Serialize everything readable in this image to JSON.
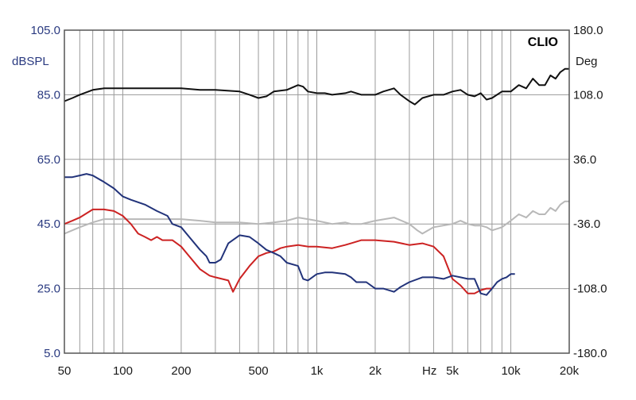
{
  "chart_data": {
    "type": "line",
    "brand": "CLIO",
    "ylabel_left": "dBSPL",
    "ylabel_right": "Deg",
    "x_unit_label": "Hz",
    "x_scale": "log",
    "xlim": [
      50,
      20000
    ],
    "ylim_left": [
      5,
      105
    ],
    "ylim_right": [
      -180,
      180
    ],
    "x_ticks": [
      {
        "value": 50,
        "label": "50"
      },
      {
        "value": 100,
        "label": "100"
      },
      {
        "value": 200,
        "label": "200"
      },
      {
        "value": 500,
        "label": "500"
      },
      {
        "value": 1000,
        "label": "1k"
      },
      {
        "value": 2000,
        "label": "2k"
      },
      {
        "value": 5000,
        "label": "5k"
      },
      {
        "value": 10000,
        "label": "10k"
      },
      {
        "value": 20000,
        "label": "20k"
      }
    ],
    "y_ticks_left": [
      "105.0",
      "85.0",
      "65.0",
      "45.0",
      "25.0",
      "5.0"
    ],
    "y_ticks_right": [
      "180.0",
      "108.0",
      "36.0",
      "-36.0",
      "-108.0",
      "-180.0"
    ],
    "grid": true,
    "colors": {
      "frame": "#555555",
      "grid": "#9a9a9a",
      "left_axis": "#2a3a80"
    },
    "series": [
      {
        "color": "#111111",
        "width": 2,
        "points": [
          [
            50,
            83
          ],
          [
            55,
            84
          ],
          [
            60,
            85
          ],
          [
            70,
            86.5
          ],
          [
            80,
            87
          ],
          [
            100,
            87
          ],
          [
            150,
            87
          ],
          [
            200,
            87
          ],
          [
            250,
            86.5
          ],
          [
            300,
            86.5
          ],
          [
            400,
            86
          ],
          [
            450,
            85
          ],
          [
            500,
            84
          ],
          [
            550,
            84.5
          ],
          [
            600,
            86
          ],
          [
            700,
            86.5
          ],
          [
            800,
            88
          ],
          [
            850,
            87.5
          ],
          [
            900,
            86
          ],
          [
            1000,
            85.5
          ],
          [
            1100,
            85.5
          ],
          [
            1200,
            85
          ],
          [
            1400,
            85.5
          ],
          [
            1500,
            86
          ],
          [
            1700,
            85
          ],
          [
            2000,
            85
          ],
          [
            2200,
            86
          ],
          [
            2500,
            87
          ],
          [
            2700,
            85
          ],
          [
            3000,
            83
          ],
          [
            3200,
            82
          ],
          [
            3500,
            84
          ],
          [
            4000,
            85
          ],
          [
            4500,
            85
          ],
          [
            5000,
            86
          ],
          [
            5500,
            86.5
          ],
          [
            6000,
            85
          ],
          [
            6500,
            84.5
          ],
          [
            7000,
            85.5
          ],
          [
            7500,
            83.5
          ],
          [
            8000,
            84
          ],
          [
            9000,
            86
          ],
          [
            10000,
            86
          ],
          [
            11000,
            88
          ],
          [
            12000,
            87
          ],
          [
            13000,
            90
          ],
          [
            14000,
            88
          ],
          [
            15000,
            88
          ],
          [
            16000,
            91
          ],
          [
            17000,
            90
          ],
          [
            18000,
            92
          ],
          [
            19000,
            93
          ],
          [
            20000,
            93
          ]
        ]
      },
      {
        "color": "#b8b8b8",
        "width": 2,
        "points": [
          [
            50,
            42
          ],
          [
            60,
            44
          ],
          [
            70,
            45.5
          ],
          [
            80,
            46.5
          ],
          [
            100,
            46.5
          ],
          [
            150,
            46.5
          ],
          [
            200,
            46.5
          ],
          [
            250,
            46
          ],
          [
            300,
            45.5
          ],
          [
            400,
            45.5
          ],
          [
            500,
            45
          ],
          [
            600,
            45.5
          ],
          [
            700,
            46
          ],
          [
            800,
            47
          ],
          [
            900,
            46.5
          ],
          [
            1000,
            46
          ],
          [
            1200,
            45
          ],
          [
            1400,
            45.5
          ],
          [
            1500,
            45
          ],
          [
            1700,
            45
          ],
          [
            2000,
            46
          ],
          [
            2500,
            47
          ],
          [
            3000,
            45
          ],
          [
            3300,
            43
          ],
          [
            3500,
            42
          ],
          [
            4000,
            44
          ],
          [
            5000,
            45
          ],
          [
            5500,
            46
          ],
          [
            6000,
            45
          ],
          [
            6500,
            44.5
          ],
          [
            7000,
            44.5
          ],
          [
            7500,
            44
          ],
          [
            8000,
            43
          ],
          [
            9000,
            44
          ],
          [
            10000,
            46
          ],
          [
            11000,
            48
          ],
          [
            12000,
            47
          ],
          [
            13000,
            49
          ],
          [
            14000,
            48
          ],
          [
            15000,
            48
          ],
          [
            16000,
            50
          ],
          [
            17000,
            49
          ],
          [
            18000,
            51
          ],
          [
            19000,
            52
          ],
          [
            20000,
            52
          ]
        ]
      },
      {
        "color": "#cc2222",
        "width": 2,
        "points": [
          [
            50,
            45
          ],
          [
            55,
            46
          ],
          [
            60,
            47
          ],
          [
            70,
            49.5
          ],
          [
            80,
            49.5
          ],
          [
            90,
            49
          ],
          [
            100,
            47.5
          ],
          [
            110,
            45
          ],
          [
            120,
            42
          ],
          [
            130,
            41
          ],
          [
            140,
            40
          ],
          [
            150,
            41
          ],
          [
            160,
            40
          ],
          [
            180,
            40
          ],
          [
            200,
            38
          ],
          [
            220,
            35
          ],
          [
            250,
            31
          ],
          [
            280,
            29
          ],
          [
            300,
            28.5
          ],
          [
            350,
            27.5
          ],
          [
            370,
            24
          ],
          [
            400,
            28
          ],
          [
            450,
            32
          ],
          [
            500,
            35
          ],
          [
            550,
            36
          ],
          [
            600,
            36.5
          ],
          [
            650,
            37.5
          ],
          [
            700,
            38
          ],
          [
            800,
            38.5
          ],
          [
            900,
            38
          ],
          [
            1000,
            38
          ],
          [
            1200,
            37.5
          ],
          [
            1400,
            38.5
          ],
          [
            1500,
            39
          ],
          [
            1700,
            40
          ],
          [
            2000,
            40
          ],
          [
            2500,
            39.5
          ],
          [
            3000,
            38.5
          ],
          [
            3500,
            39
          ],
          [
            4000,
            38
          ],
          [
            4500,
            35
          ],
          [
            5000,
            28
          ],
          [
            5500,
            26
          ],
          [
            6000,
            23.5
          ],
          [
            6500,
            23.5
          ],
          [
            7000,
            24.5
          ],
          [
            7500,
            25
          ],
          [
            8000,
            25
          ]
        ]
      },
      {
        "color": "#22337a",
        "width": 2,
        "points": [
          [
            50,
            59.5
          ],
          [
            55,
            59.5
          ],
          [
            60,
            60
          ],
          [
            65,
            60.5
          ],
          [
            70,
            60
          ],
          [
            80,
            58
          ],
          [
            90,
            56
          ],
          [
            100,
            53.5
          ],
          [
            110,
            52.5
          ],
          [
            130,
            51
          ],
          [
            150,
            49
          ],
          [
            170,
            47.5
          ],
          [
            180,
            45
          ],
          [
            200,
            44
          ],
          [
            220,
            41
          ],
          [
            250,
            37
          ],
          [
            270,
            35
          ],
          [
            280,
            33
          ],
          [
            300,
            33
          ],
          [
            320,
            34
          ],
          [
            350,
            39
          ],
          [
            400,
            41.5
          ],
          [
            450,
            41
          ],
          [
            500,
            39
          ],
          [
            550,
            37
          ],
          [
            600,
            36
          ],
          [
            650,
            35
          ],
          [
            700,
            33
          ],
          [
            800,
            32
          ],
          [
            850,
            28
          ],
          [
            900,
            27.5
          ],
          [
            1000,
            29.5
          ],
          [
            1100,
            30
          ],
          [
            1200,
            30
          ],
          [
            1400,
            29.5
          ],
          [
            1500,
            28.5
          ],
          [
            1600,
            27
          ],
          [
            1800,
            27
          ],
          [
            2000,
            25
          ],
          [
            2200,
            25
          ],
          [
            2500,
            24
          ],
          [
            2700,
            25.5
          ],
          [
            3000,
            27
          ],
          [
            3500,
            28.5
          ],
          [
            4000,
            28.5
          ],
          [
            4500,
            28
          ],
          [
            5000,
            29
          ],
          [
            5500,
            28.5
          ],
          [
            6000,
            28
          ],
          [
            6500,
            28
          ],
          [
            7000,
            23.5
          ],
          [
            7500,
            23
          ],
          [
            8000,
            25
          ],
          [
            8500,
            27
          ],
          [
            9000,
            28
          ],
          [
            9500,
            28.5
          ],
          [
            10000,
            29.5
          ],
          [
            10500,
            29.5
          ]
        ]
      }
    ]
  }
}
